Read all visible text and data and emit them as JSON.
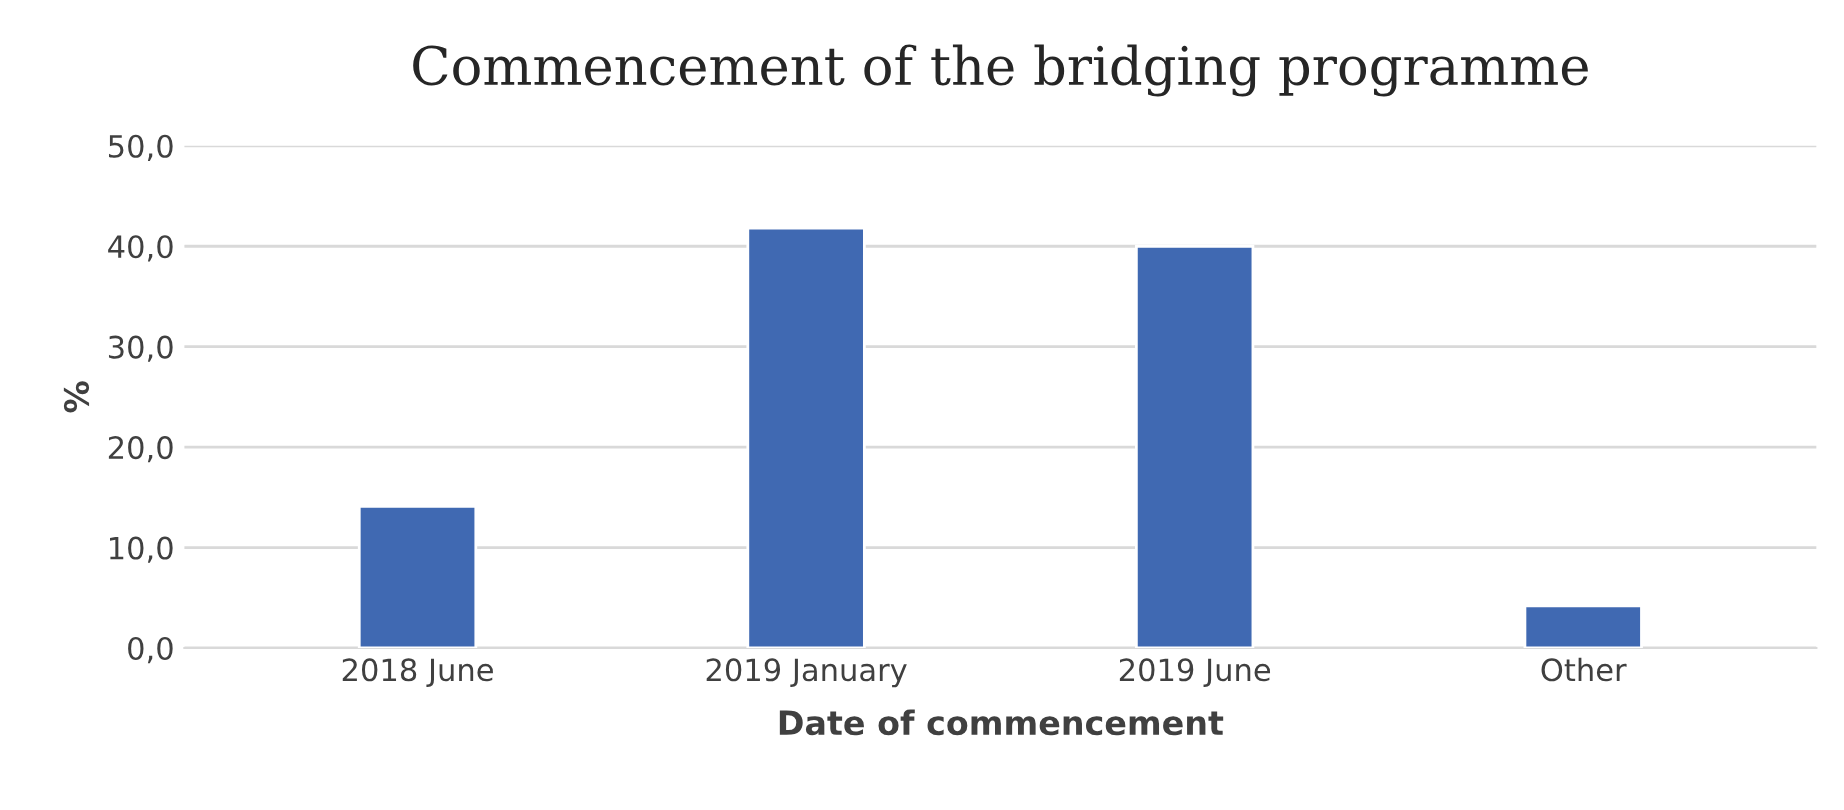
{
  "chart_data": {
    "type": "bar",
    "title": "Commencement of the bridging programme",
    "xlabel": "Date of commencement",
    "ylabel": "%",
    "categories": [
      "2018 June",
      "2019 January",
      "2019 June",
      "Other"
    ],
    "values": [
      14.1,
      41.8,
      40.0,
      4.2
    ],
    "color": "#4069b2",
    "ylim": [
      0,
      50
    ],
    "yticks": [
      {
        "value": 0,
        "label": "0,0"
      },
      {
        "value": 10,
        "label": "10,0"
      },
      {
        "value": 20,
        "label": "20,0"
      },
      {
        "value": 30,
        "label": "30,0"
      },
      {
        "value": 40,
        "label": "40,0"
      },
      {
        "value": 50,
        "label": "50,0"
      }
    ],
    "grid": "y",
    "legend": false
  }
}
